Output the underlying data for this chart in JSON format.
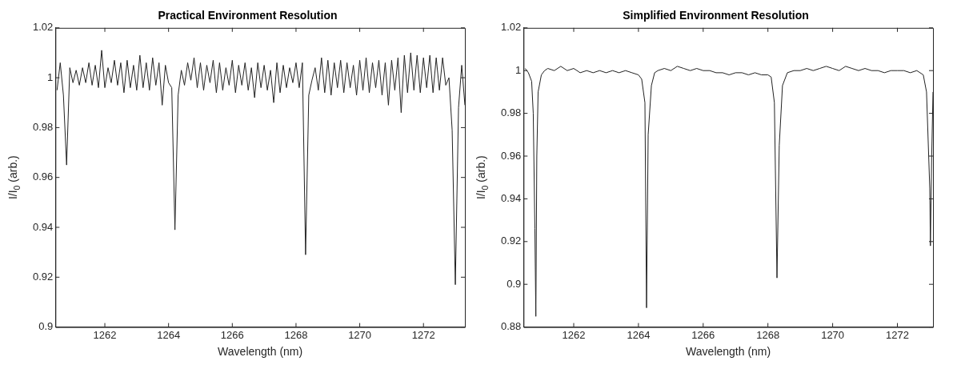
{
  "chart_data": [
    {
      "type": "line",
      "title": "Practical Environment Resolution",
      "xlabel": "Wavelength (nm)",
      "ylabel": "I/I$_{0}$ (arb.)",
      "xlim": [
        1260.45,
        1273.3
      ],
      "xticks": [
        1262,
        1264,
        1266,
        1268,
        1270,
        1272
      ],
      "ylim": [
        0.9,
        1.02
      ],
      "yticks": [
        0.9,
        0.92,
        0.94,
        0.96,
        0.98,
        1,
        1.02
      ],
      "grid": false,
      "marker": "none",
      "line_style": "solid",
      "x": [
        1260.5,
        1260.6,
        1260.7,
        1260.8,
        1260.9,
        1261.0,
        1261.1,
        1261.2,
        1261.3,
        1261.4,
        1261.5,
        1261.6,
        1261.7,
        1261.8,
        1261.9,
        1262.0,
        1262.1,
        1262.2,
        1262.3,
        1262.4,
        1262.5,
        1262.6,
        1262.7,
        1262.8,
        1262.9,
        1263.0,
        1263.1,
        1263.2,
        1263.3,
        1263.4,
        1263.5,
        1263.6,
        1263.7,
        1263.8,
        1263.9,
        1264.0,
        1264.1,
        1264.2,
        1264.3,
        1264.4,
        1264.5,
        1264.6,
        1264.7,
        1264.8,
        1264.9,
        1265.0,
        1265.1,
        1265.2,
        1265.3,
        1265.4,
        1265.5,
        1265.6,
        1265.7,
        1265.8,
        1265.9,
        1266.0,
        1266.1,
        1266.2,
        1266.3,
        1266.4,
        1266.5,
        1266.6,
        1266.7,
        1266.8,
        1266.9,
        1267.0,
        1267.1,
        1267.2,
        1267.3,
        1267.4,
        1267.5,
        1267.6,
        1267.7,
        1267.8,
        1267.9,
        1268.0,
        1268.1,
        1268.2,
        1268.3,
        1268.4,
        1268.5,
        1268.6,
        1268.7,
        1268.8,
        1268.9,
        1269.0,
        1269.1,
        1269.2,
        1269.3,
        1269.4,
        1269.5,
        1269.6,
        1269.7,
        1269.8,
        1269.9,
        1270.0,
        1270.1,
        1270.2,
        1270.3,
        1270.4,
        1270.5,
        1270.6,
        1270.7,
        1270.8,
        1270.9,
        1271.0,
        1271.1,
        1271.2,
        1271.3,
        1271.4,
        1271.5,
        1271.6,
        1271.7,
        1271.8,
        1271.9,
        1272.0,
        1272.1,
        1272.2,
        1272.3,
        1272.4,
        1272.5,
        1272.6,
        1272.7,
        1272.8,
        1272.9,
        1273.0,
        1273.1,
        1273.2,
        1273.3
      ],
      "series": [
        {
          "color": "#222222",
          "values": [
            0.995,
            1.006,
            0.993,
            0.965,
            1.004,
            0.998,
            1.003,
            0.997,
            1.004,
            0.998,
            1.006,
            0.997,
            1.005,
            0.996,
            1.011,
            0.996,
            1.004,
            0.998,
            1.007,
            0.997,
            1.006,
            0.994,
            1.007,
            0.996,
            1.005,
            0.995,
            1.009,
            0.996,
            1.006,
            0.995,
            1.008,
            0.997,
            1.006,
            0.989,
            1.005,
            0.998,
            0.996,
            0.939,
            0.993,
            1.003,
            0.997,
            1.006,
            0.999,
            1.008,
            0.996,
            1.006,
            0.995,
            1.005,
            0.998,
            1.007,
            0.994,
            1.006,
            0.995,
            1.004,
            0.997,
            1.007,
            0.994,
            1.005,
            0.997,
            1.006,
            0.995,
            1.004,
            0.992,
            1.006,
            0.996,
            1.005,
            0.995,
            1.003,
            0.99,
            1.006,
            0.994,
            1.005,
            0.996,
            1.004,
            0.998,
            1.006,
            0.996,
            1.006,
            0.929,
            0.993,
            0.999,
            1.004,
            0.995,
            1.008,
            0.994,
            1.007,
            0.993,
            1.006,
            0.996,
            1.007,
            0.994,
            1.006,
            0.996,
            1.005,
            0.993,
            1.007,
            0.995,
            1.008,
            0.994,
            1.006,
            0.996,
            1.007,
            0.993,
            1.006,
            0.989,
            1.007,
            0.995,
            1.008,
            0.986,
            1.009,
            0.994,
            1.01,
            0.995,
            1.009,
            0.994,
            1.008,
            0.996,
            1.009,
            0.994,
            1.008,
            0.995,
            1.008,
            0.997,
            1.0,
            0.979,
            0.917,
            0.988,
            1.005,
            0.989
          ]
        }
      ]
    },
    {
      "type": "line",
      "title": "Simplified Environment Resolution",
      "xlabel": "Wavelength (nm)",
      "ylabel": "I/I$_{0}$ (arb.)",
      "xlim": [
        1260.45,
        1273.1
      ],
      "xticks": [
        1262,
        1264,
        1266,
        1268,
        1270,
        1272
      ],
      "ylim": [
        0.88,
        1.02
      ],
      "yticks": [
        0.88,
        0.9,
        0.92,
        0.94,
        0.96,
        0.98,
        1,
        1.02
      ],
      "grid": false,
      "marker": "none",
      "line_style": "solid",
      "x": [
        1260.5,
        1260.6,
        1260.7,
        1260.75,
        1260.8,
        1260.83,
        1260.86,
        1260.9,
        1261.0,
        1261.1,
        1261.2,
        1261.4,
        1261.6,
        1261.8,
        1262.0,
        1262.2,
        1262.4,
        1262.6,
        1262.8,
        1263.0,
        1263.2,
        1263.4,
        1263.6,
        1263.8,
        1264.0,
        1264.1,
        1264.2,
        1264.25,
        1264.3,
        1264.4,
        1264.5,
        1264.6,
        1264.8,
        1265.0,
        1265.2,
        1265.4,
        1265.6,
        1265.8,
        1266.0,
        1266.2,
        1266.4,
        1266.6,
        1266.8,
        1267.0,
        1267.2,
        1267.4,
        1267.6,
        1267.8,
        1268.0,
        1268.1,
        1268.2,
        1268.28,
        1268.35,
        1268.45,
        1268.6,
        1268.8,
        1269.0,
        1269.2,
        1269.4,
        1269.6,
        1269.8,
        1270.0,
        1270.2,
        1270.4,
        1270.6,
        1270.8,
        1271.0,
        1271.2,
        1271.4,
        1271.6,
        1271.8,
        1272.0,
        1272.2,
        1272.4,
        1272.6,
        1272.8,
        1272.9,
        1273.0,
        1273.02,
        1273.06,
        1273.1
      ],
      "series": [
        {
          "color": "#222222",
          "values": [
            1.001,
            0.999,
            0.995,
            0.98,
            0.926,
            0.885,
            0.96,
            0.99,
            0.998,
            1.0,
            1.001,
            1.0,
            1.002,
            1.0,
            1.001,
            0.999,
            1.0,
            0.999,
            1.0,
            0.999,
            1.0,
            0.999,
            1.0,
            0.999,
            0.998,
            0.996,
            0.985,
            0.889,
            0.97,
            0.993,
            0.999,
            1.0,
            1.001,
            1.0,
            1.002,
            1.001,
            1.0,
            1.001,
            1.0,
            1.0,
            0.999,
            0.999,
            0.998,
            0.999,
            0.999,
            0.998,
            0.999,
            0.998,
            0.998,
            0.997,
            0.985,
            0.903,
            0.965,
            0.993,
            0.999,
            1.0,
            1.0,
            1.001,
            1.0,
            1.001,
            1.002,
            1.001,
            1.0,
            1.002,
            1.001,
            1.0,
            1.001,
            1.0,
            1.0,
            0.999,
            1.0,
            1.0,
            1.0,
            0.999,
            1.0,
            0.998,
            0.99,
            0.945,
            0.918,
            0.96,
            0.99
          ]
        }
      ]
    }
  ]
}
